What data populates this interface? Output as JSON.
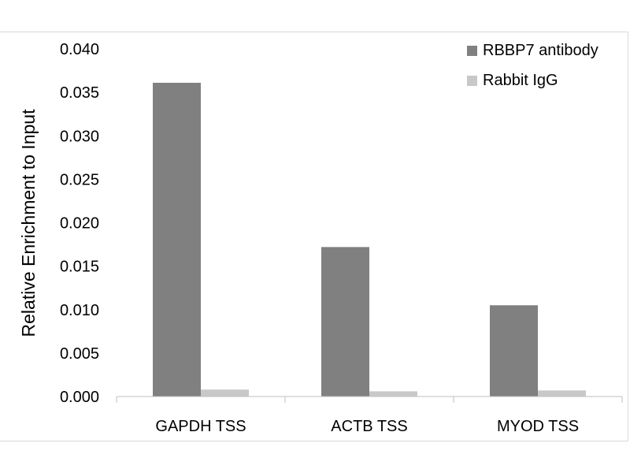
{
  "chart_data": {
    "type": "bar",
    "title": "",
    "xlabel": "",
    "ylabel": "Relative Enrichment to Input",
    "categories": [
      "GAPDH TSS",
      "ACTB TSS",
      "MYOD TSS"
    ],
    "series": [
      {
        "name": "RBBP7 antibody",
        "values": [
          0.0361,
          0.0172,
          0.0105
        ],
        "color": "#808080"
      },
      {
        "name": "Rabbit IgG",
        "values": [
          0.0008,
          0.0006,
          0.0007
        ],
        "color": "#c8c8c8"
      }
    ],
    "ylim": [
      0,
      0.04
    ],
    "yticks": [
      "0.000",
      "0.005",
      "0.010",
      "0.015",
      "0.020",
      "0.025",
      "0.030",
      "0.035",
      "0.040"
    ],
    "grid": false,
    "legend_position": "top-right"
  }
}
